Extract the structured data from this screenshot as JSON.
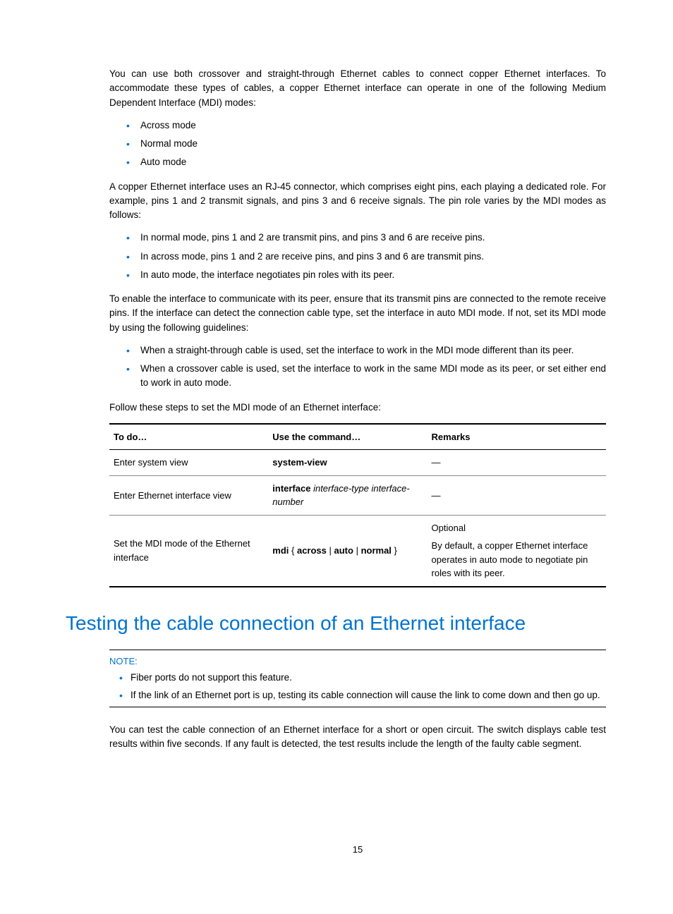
{
  "para1": "You can use both crossover and straight-through Ethernet cables to connect copper Ethernet interfaces. To accommodate these types of cables, a copper Ethernet interface can operate in one of the following Medium Dependent Interface (MDI) modes:",
  "modes": {
    "m0": "Across mode",
    "m1": "Normal mode",
    "m2": "Auto mode"
  },
  "para2": "A copper Ethernet interface uses an RJ-45 connector, which comprises eight pins, each playing a dedicated role. For example, pins 1 and 2 transmit signals, and pins 3 and 6 receive signals. The pin role varies by the MDI modes as follows:",
  "pinroles": {
    "r0": "In normal mode, pins 1 and 2 are transmit pins, and pins 3 and 6 are receive pins.",
    "r1": "In across mode, pins 1 and 2 are receive pins, and pins 3 and 6 are transmit pins.",
    "r2": "In auto mode, the interface negotiates pin roles with its peer."
  },
  "para3": "To enable the interface to communicate with its peer, ensure that its transmit pins are connected to the remote receive pins. If the interface can detect the connection cable type, set the interface in auto MDI mode. If not, set its MDI mode by using the following guidelines:",
  "guidelines": {
    "g0": "When a straight-through cable is used, set the interface to work in the MDI mode different than its peer.",
    "g1": "When a crossover cable is used, set the interface to work in the same MDI mode as its peer, or set either end to work in auto mode."
  },
  "para4": "Follow these steps to set the MDI mode of an Ethernet interface:",
  "table": {
    "h0": "To do…",
    "h1": "Use the command…",
    "h2": "Remarks",
    "rows": {
      "r0": {
        "c0": "Enter system view",
        "cmd_bold": "system-view",
        "remarks_dash": "—"
      },
      "r1": {
        "c0": "Enter Ethernet interface view",
        "cmd_bold": "interface",
        "cmd_italic": " interface-type interface-number",
        "remarks_dash": "—"
      },
      "r2": {
        "c0": "Set the MDI mode of the Ethernet interface",
        "cmd_b0": "mdi",
        "cmd_t0": " { ",
        "cmd_b1": "across",
        "cmd_t1": " | ",
        "cmd_b2": "auto",
        "cmd_t2": " | ",
        "cmd_b3": "normal",
        "cmd_t3": " }",
        "remarks_opt": "Optional",
        "remarks_text": "By default, a copper Ethernet interface operates in auto mode to negotiate pin roles with its peer."
      }
    }
  },
  "heading": "Testing the cable connection of an Ethernet interface",
  "note": {
    "label": "NOTE:",
    "items": {
      "n0": "Fiber ports do not support this feature.",
      "n1": "If the link of an Ethernet port is up, testing its cable connection will cause the link to come down and then go up."
    }
  },
  "para5": "You can test the cable connection of an Ethernet interface for a short or open circuit. The switch displays cable test results within five seconds. If any fault is detected, the test results include the length of the faulty cable segment.",
  "pagenum": "15"
}
